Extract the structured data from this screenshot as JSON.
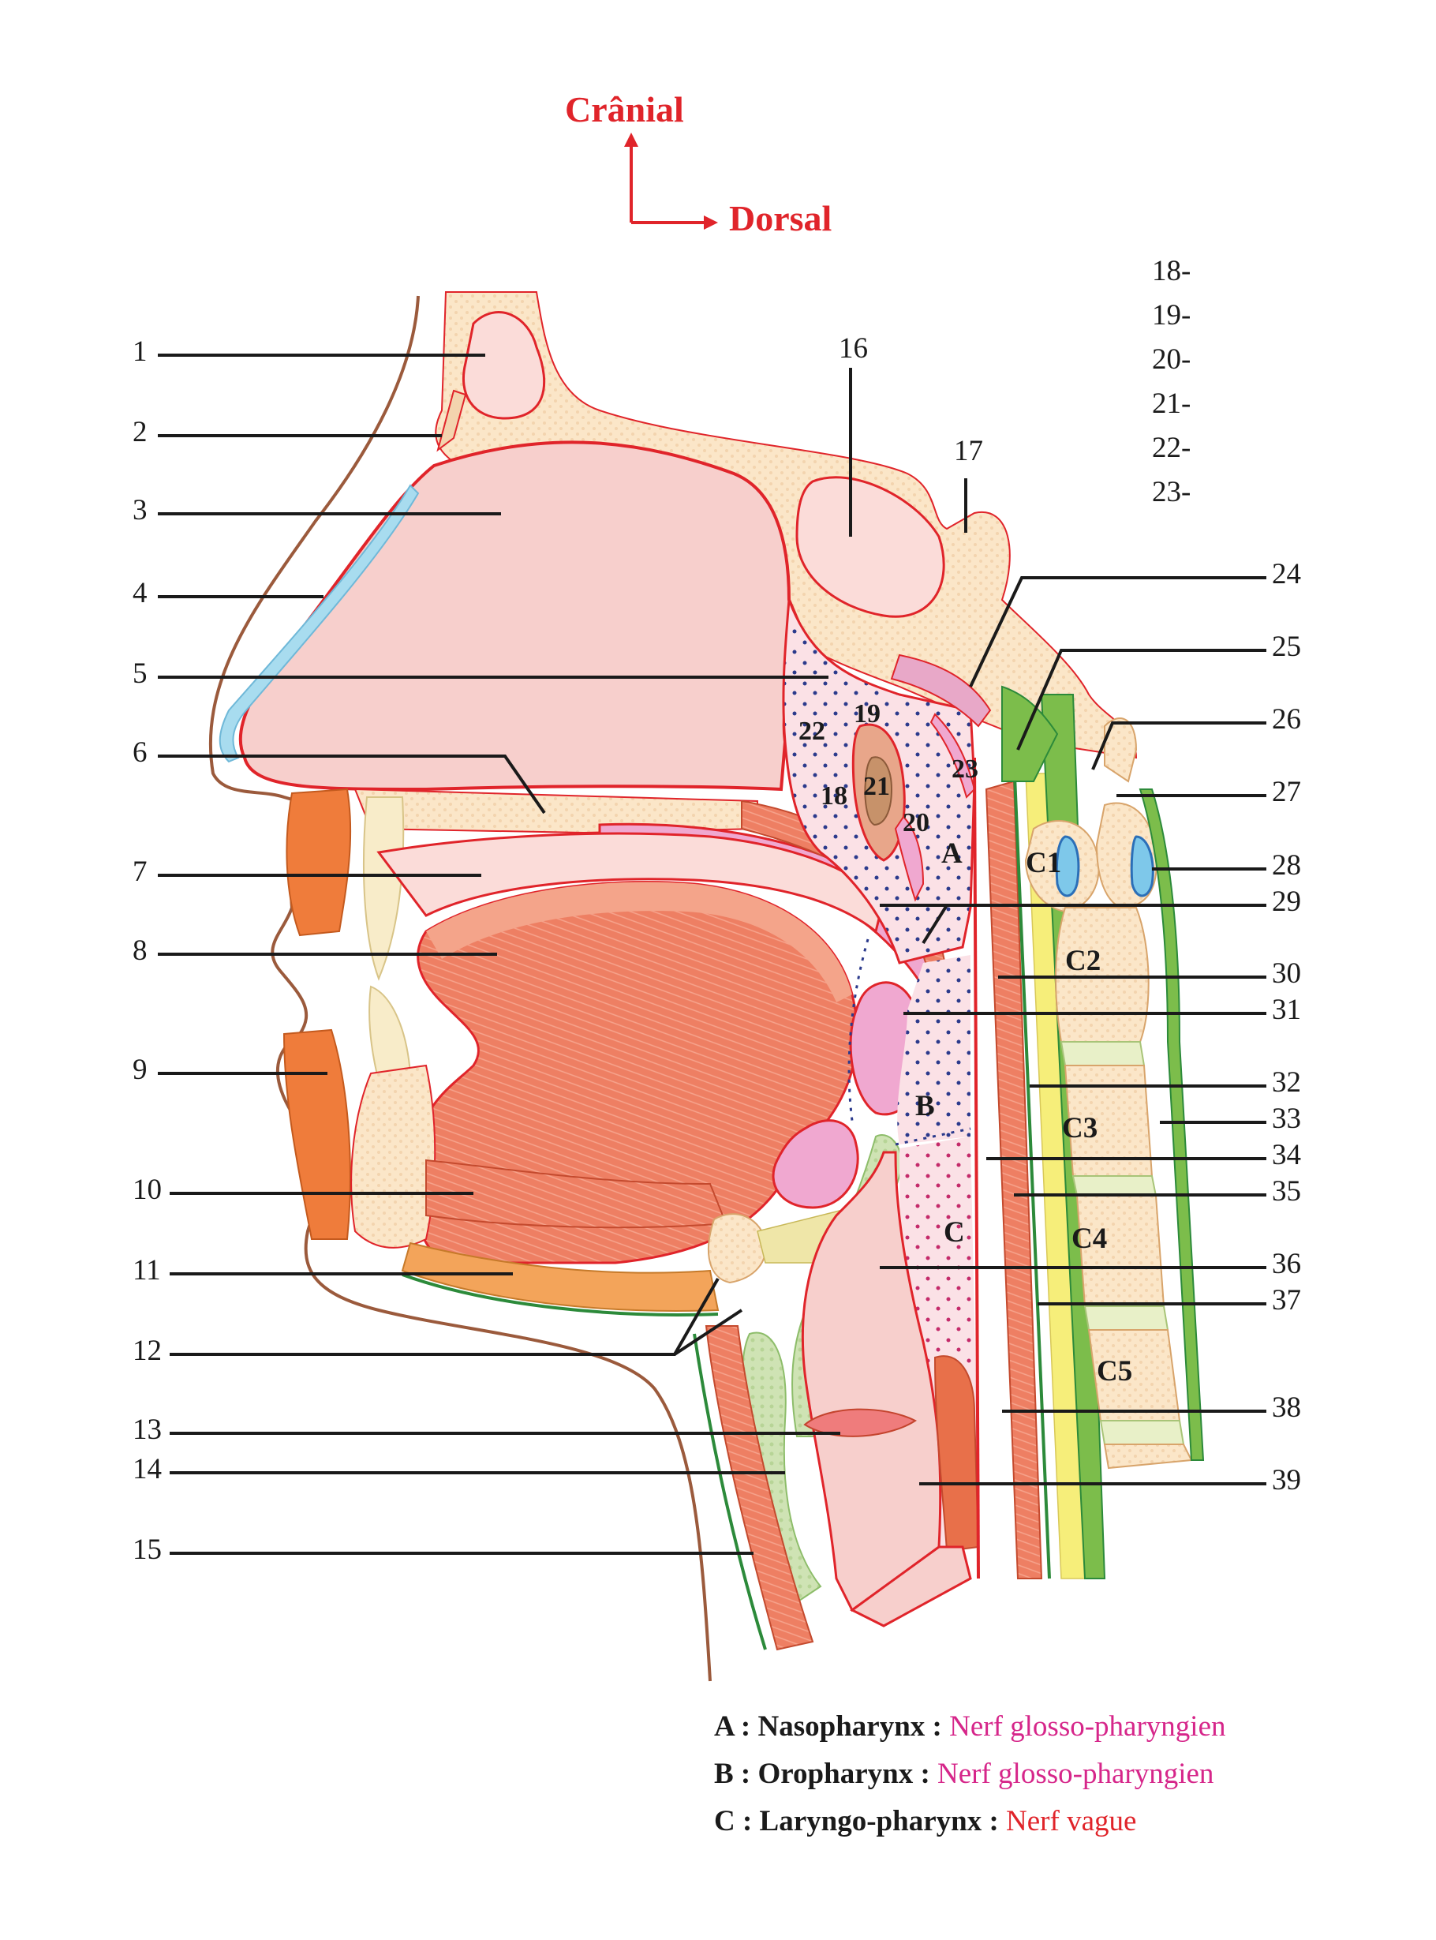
{
  "orientation": {
    "cranial": "Crânial",
    "dorsal": "Dorsal"
  },
  "left_labels": [
    "1",
    "2",
    "3",
    "4",
    "5",
    "6",
    "7",
    "8",
    "9",
    "10",
    "11",
    "12",
    "13",
    "14",
    "15"
  ],
  "right_labels": [
    "24",
    "25",
    "26",
    "27",
    "28",
    "29",
    "30",
    "31",
    "32",
    "33",
    "34",
    "35",
    "36",
    "37",
    "38",
    "39"
  ],
  "top_labels": [
    "16",
    "17"
  ],
  "legend_numbers": [
    "18-",
    "19-",
    "20-",
    "21-",
    "22-",
    "23-"
  ],
  "inner_numbers": [
    "19",
    "22",
    "23",
    "21",
    "18",
    "20"
  ],
  "regions": [
    "A",
    "B",
    "C"
  ],
  "vertebrae": [
    "C1",
    "C2",
    "C3",
    "C4",
    "C5"
  ],
  "legend": [
    {
      "letter": "A :",
      "region": "Nasopharynx :",
      "nerve": "Nerf glosso-pharyngien",
      "nerve_color": "#d6268a"
    },
    {
      "letter": "B :",
      "region": "Oropharynx :",
      "nerve": "Nerf glosso-pharyngien",
      "nerve_color": "#d6268a"
    },
    {
      "letter": "C :",
      "region": "Laryngo-pharynx :",
      "nerve": "Nerf vague",
      "nerve_color": "#e0242a"
    }
  ],
  "colors": {
    "bone": "#fbe6c8",
    "mucosa": "#f7cfcc",
    "muscle": "#ee7f63",
    "cartilage": "#cfe3b4",
    "outline_red": "#e0242a",
    "skin_line": "#9b5a3c",
    "nerve_yellow": "#f6ee7a",
    "ligament_green": "#7cbd4b",
    "skin_blue": "#a8dcef"
  }
}
